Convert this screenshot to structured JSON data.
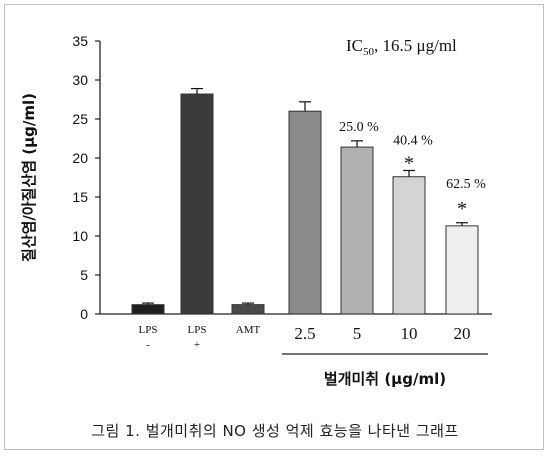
{
  "caption": "그림 1.  벌개미취의 NO 생성 억제 효능을 나타낸 그래프",
  "chart_data": {
    "type": "bar",
    "ylabel": "질산염/아질산염 (μg/ml)",
    "xlabel": "벌개미취 (μg/ml)",
    "ylim": [
      0,
      35
    ],
    "yticks": [
      0,
      5,
      10,
      15,
      20,
      25,
      30,
      35
    ],
    "annotation_ic50": {
      "prefix": "IC",
      "sub": "50",
      "suffix": ", 16.5 μg/ml"
    },
    "bars": [
      {
        "label_top": "LPS",
        "label_bottom": "-",
        "value": 1.2,
        "error": 0.2,
        "color": "#1f1f1f",
        "pct": "",
        "star": false
      },
      {
        "label_top": "LPS",
        "label_bottom": "+",
        "value": 28.2,
        "error": 0.7,
        "color": "#3a3a3a",
        "pct": "",
        "star": false
      },
      {
        "label_top": "AMT",
        "label_bottom": "",
        "value": 1.2,
        "error": 0.2,
        "color": "#4a4a4a",
        "pct": "",
        "star": false
      },
      {
        "label_top": "2.5",
        "label_bottom": "",
        "value": 26.0,
        "error": 1.2,
        "color": "#8a8a8a",
        "pct": "",
        "star": false
      },
      {
        "label_top": "5",
        "label_bottom": "",
        "value": 21.4,
        "error": 0.8,
        "color": "#b0b0b0",
        "pct": "25.0 %",
        "star": false
      },
      {
        "label_top": "10",
        "label_bottom": "",
        "value": 17.6,
        "error": 0.8,
        "color": "#d4d4d4",
        "pct": "40.4 %",
        "star": true
      },
      {
        "label_top": "20",
        "label_bottom": "",
        "value": 11.3,
        "error": 0.4,
        "color": "#efefef",
        "pct": "62.5 %",
        "star": true
      }
    ],
    "star_symbol": "*"
  }
}
